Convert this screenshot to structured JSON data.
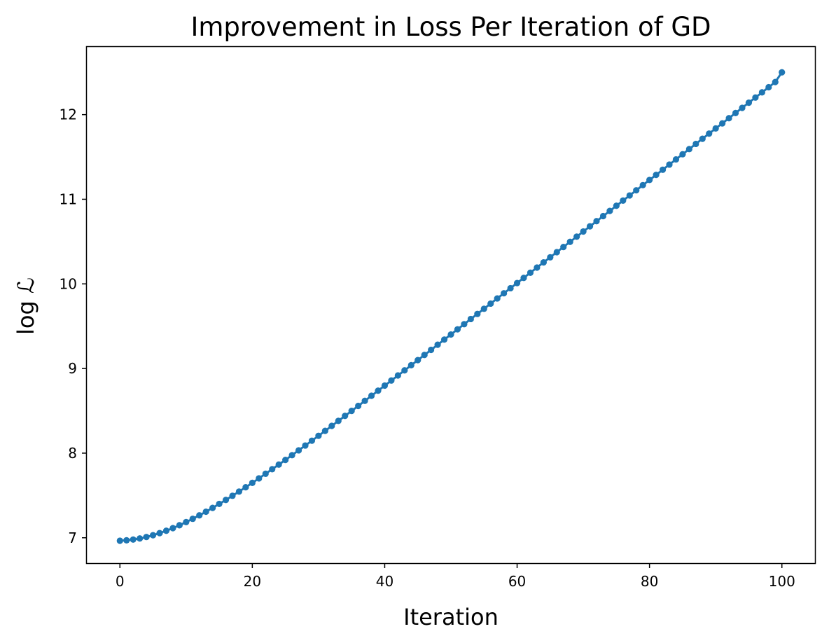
{
  "chart_data": {
    "type": "line",
    "title": "Improvement in Loss Per Iteration of GD",
    "xlabel": "Iteration",
    "ylabel": "log ℒ",
    "xlim": [
      -5,
      105
    ],
    "ylim": [
      6.7,
      12.8
    ],
    "xticks": [
      0,
      20,
      40,
      60,
      80,
      100
    ],
    "yticks": [
      7,
      8,
      9,
      10,
      11,
      12
    ],
    "grid": false,
    "marker": "circle",
    "color": "#1f77b4",
    "series": [
      {
        "x": [
          0,
          1,
          2,
          3,
          4,
          5,
          6,
          7,
          8,
          9,
          10,
          11,
          12,
          13,
          14,
          15,
          16,
          17,
          18,
          19,
          20,
          21,
          22,
          23,
          24,
          25,
          26,
          27,
          28,
          29,
          30,
          31,
          32,
          33,
          34,
          35,
          36,
          37,
          38,
          39,
          40,
          41,
          42,
          43,
          44,
          45,
          46,
          47,
          48,
          49,
          50,
          51,
          52,
          53,
          54,
          55,
          56,
          57,
          58,
          59,
          60,
          61,
          62,
          63,
          64,
          65,
          66,
          67,
          68,
          69,
          70,
          71,
          72,
          73,
          74,
          75,
          76,
          77,
          78,
          79,
          80,
          81,
          82,
          83,
          84,
          85,
          86,
          87,
          88,
          89,
          90,
          91,
          92,
          93,
          94,
          95,
          96,
          97,
          98,
          99,
          100
        ],
        "y": [
          6.965,
          6.97,
          6.979,
          6.992,
          7.009,
          7.03,
          7.055,
          7.083,
          7.114,
          7.148,
          7.185,
          7.224,
          7.265,
          7.308,
          7.353,
          7.4,
          7.447,
          7.496,
          7.546,
          7.597,
          7.649,
          7.702,
          7.756,
          7.81,
          7.865,
          7.92,
          7.976,
          8.033,
          8.09,
          8.147,
          8.205,
          8.263,
          8.322,
          8.381,
          8.44,
          8.499,
          8.558,
          8.618,
          8.678,
          8.738,
          8.798,
          8.858,
          8.918,
          8.978,
          9.039,
          9.099,
          9.16,
          9.22,
          9.281,
          9.342,
          9.402,
          9.463,
          9.524,
          9.585,
          9.645,
          9.706,
          9.767,
          9.828,
          9.889,
          9.949,
          10.01,
          10.071,
          10.132,
          10.193,
          10.254,
          10.314,
          10.375,
          10.436,
          10.497,
          10.558,
          10.619,
          10.68,
          10.741,
          10.801,
          10.862,
          10.923,
          10.984,
          11.045,
          11.106,
          11.167,
          11.228,
          11.288,
          11.349,
          11.41,
          11.471,
          11.532,
          11.593,
          11.654,
          11.715,
          11.776,
          11.837,
          11.897,
          11.958,
          12.019,
          12.08,
          12.141,
          12.202,
          12.263,
          12.324,
          12.385,
          12.5
        ]
      }
    ]
  }
}
